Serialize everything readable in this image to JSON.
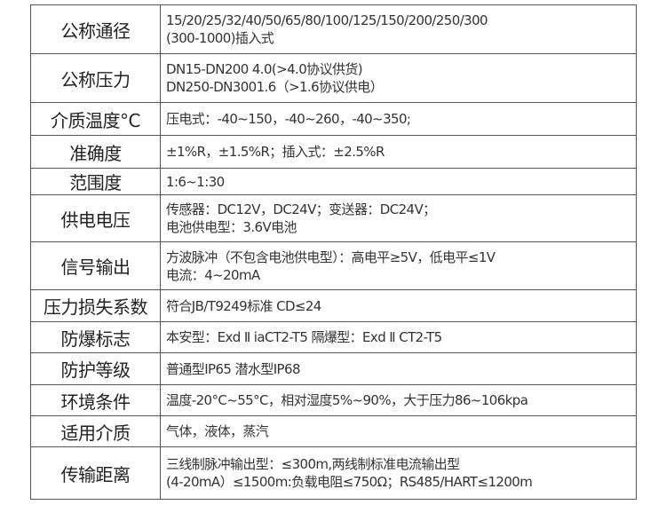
{
  "rows": [
    {
      "label": "公称通径",
      "lines": [
        "15/20/25/32/40/50/65/80/100/125/150/200/250/300",
        "(300-1000)插入式"
      ]
    },
    {
      "label": "公称压力",
      "lines": [
        "DN15-DN200 4.0(>4.0协议供货)",
        "DN250-DN3001.6（>1.6协议供电）"
      ]
    },
    {
      "label": "介质温度°C",
      "lines": [
        "压电式：-40~150，-40~260，-40~350;"
      ]
    },
    {
      "label": "准确度",
      "lines": [
        "±1%R，±1.5%R；插入式：±2.5%R"
      ]
    },
    {
      "label": "范围度",
      "lines": [
        "1:6~1:30"
      ]
    },
    {
      "label": "供电电压",
      "lines": [
        "传感器：DC12V，DC24V；变送器：DC24V；",
        "电池供电型：3.6V电池"
      ]
    },
    {
      "label": "信号输出",
      "lines": [
        "方波脉冲（不包含电池供电型）：高电平≥5V，低电平≤1V",
        "电流：4~20mA"
      ]
    },
    {
      "label": "压力损失系数",
      "lines": [
        "符合JB/T9249标准 CD≤24"
      ]
    },
    {
      "label": "防爆标志",
      "lines": [
        "本安型：Exd Ⅱ iaCT2-T5 隔爆型：Exd Ⅱ CT2-T5"
      ]
    },
    {
      "label": "防护等级",
      "lines": [
        "普通型IP65 潜水型IP68"
      ]
    },
    {
      "label": "环境条件",
      "lines": [
        "温度-20°C~55°C，相对湿度5%~90%，大于压力86~106kpa"
      ]
    },
    {
      "label": "适用介质",
      "lines": [
        "气体，液体，蒸汽"
      ]
    },
    {
      "label": "传输距离",
      "lines": [
        "三线制脉冲输出型：≤300m,两线制标准电流输出型",
        "(4-20mA）≤1500m:负载电阻≤750Ω；RS485/HART≤1200m"
      ]
    }
  ]
}
